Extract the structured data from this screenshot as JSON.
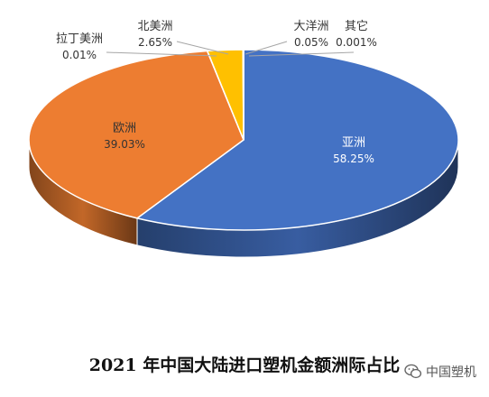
{
  "caption": {
    "year": "2021",
    "text": "年中国大陆进口塑机金额洲际占比"
  },
  "watermark": {
    "text": "中国塑机",
    "icon": "wechat-icon"
  },
  "chart_data": {
    "type": "pie",
    "title": "2021 年中国大陆进口塑机金额洲际占比",
    "categories": [
      "亚洲",
      "欧洲",
      "拉丁美洲",
      "北美洲",
      "大洋洲",
      "其它"
    ],
    "values": [
      58.25,
      39.03,
      0.01,
      2.65,
      0.05,
      0.001
    ],
    "value_labels": [
      "58.25%",
      "39.03%",
      "0.01%",
      "2.65%",
      "0.05%",
      "0.001%"
    ],
    "colors": [
      "#4472C4",
      "#ED7D31",
      "#A5A5A5",
      "#FFC000",
      "#5B9BD5",
      "#70AD47"
    ],
    "style": "3d-pie",
    "legend": "none"
  }
}
